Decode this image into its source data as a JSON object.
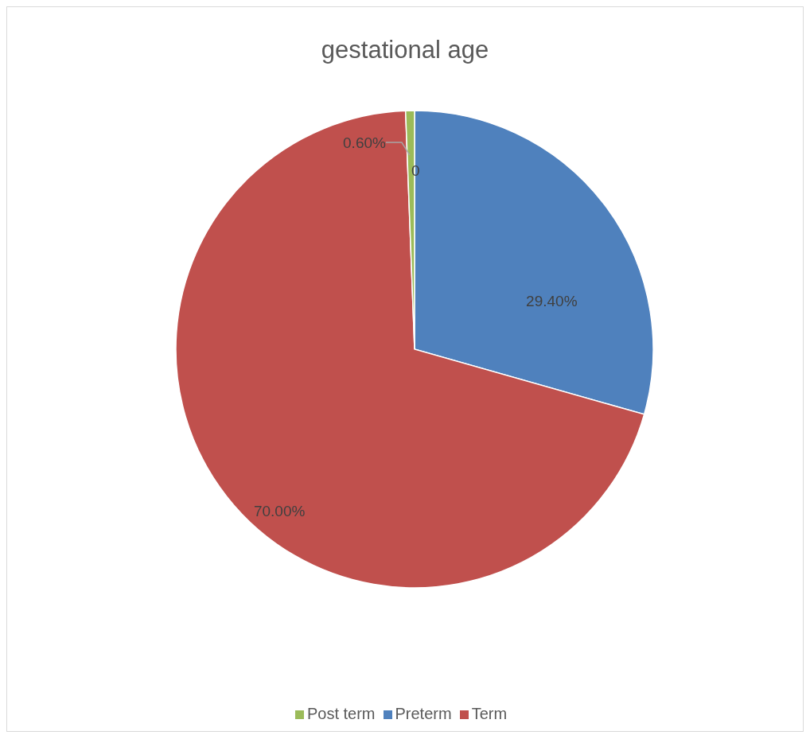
{
  "chart_data": {
    "type": "pie",
    "title": "gestational age",
    "categories": [
      "Preterm",
      "Term",
      "Post term"
    ],
    "values": [
      29.4,
      70,
      0.6
    ],
    "colors": [
      "#4f81bd",
      "#c0504d",
      "#9bbb59"
    ],
    "value_labels": [
      "29.40%",
      "70.00%",
      "0.60%"
    ],
    "annotations": [
      "0"
    ],
    "legend": "bottom"
  }
}
